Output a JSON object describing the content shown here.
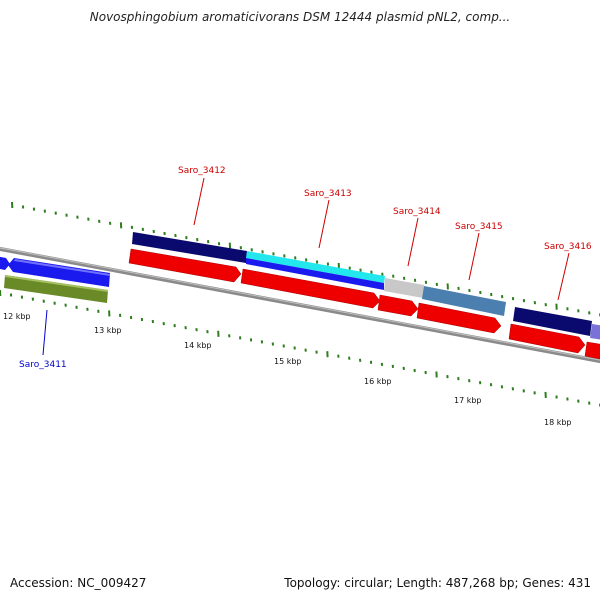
{
  "title": "Novosphingobium aromaticivorans DSM 12444 plasmid pNL2, comp...",
  "footer": {
    "accession": "Accession: NC_009427",
    "summary": "Topology: circular; Length: 487,268 bp; Genes: 431"
  },
  "colors": {
    "backbone": "#8a8a8a",
    "tick": "#2e7d1e",
    "label_forward": "#cc0000",
    "label_reverse": "#0000cc",
    "cds_red": "#ee0000",
    "navy": "#0a0a6e",
    "blue": "#1a1aee",
    "cyan": "#22e8ee",
    "steel": "#4a7fb0",
    "gray": "#c8c8c8",
    "olive": "#6a8a28",
    "lavender": "#7a72d8"
  },
  "kbp_labels": [
    "12 kbp",
    "13 kbp",
    "14 kbp",
    "15 kbp",
    "16 kbp",
    "17 kbp",
    "18 kbp"
  ],
  "gene_labels": [
    {
      "name": "Saro_3411",
      "color": "label_reverse"
    },
    {
      "name": "Saro_3412",
      "color": "label_forward"
    },
    {
      "name": "Saro_3413",
      "color": "label_forward"
    },
    {
      "name": "Saro_3414",
      "color": "label_forward"
    },
    {
      "name": "Saro_3415",
      "color": "label_forward"
    },
    {
      "name": "Saro_3416",
      "color": "label_forward"
    }
  ]
}
